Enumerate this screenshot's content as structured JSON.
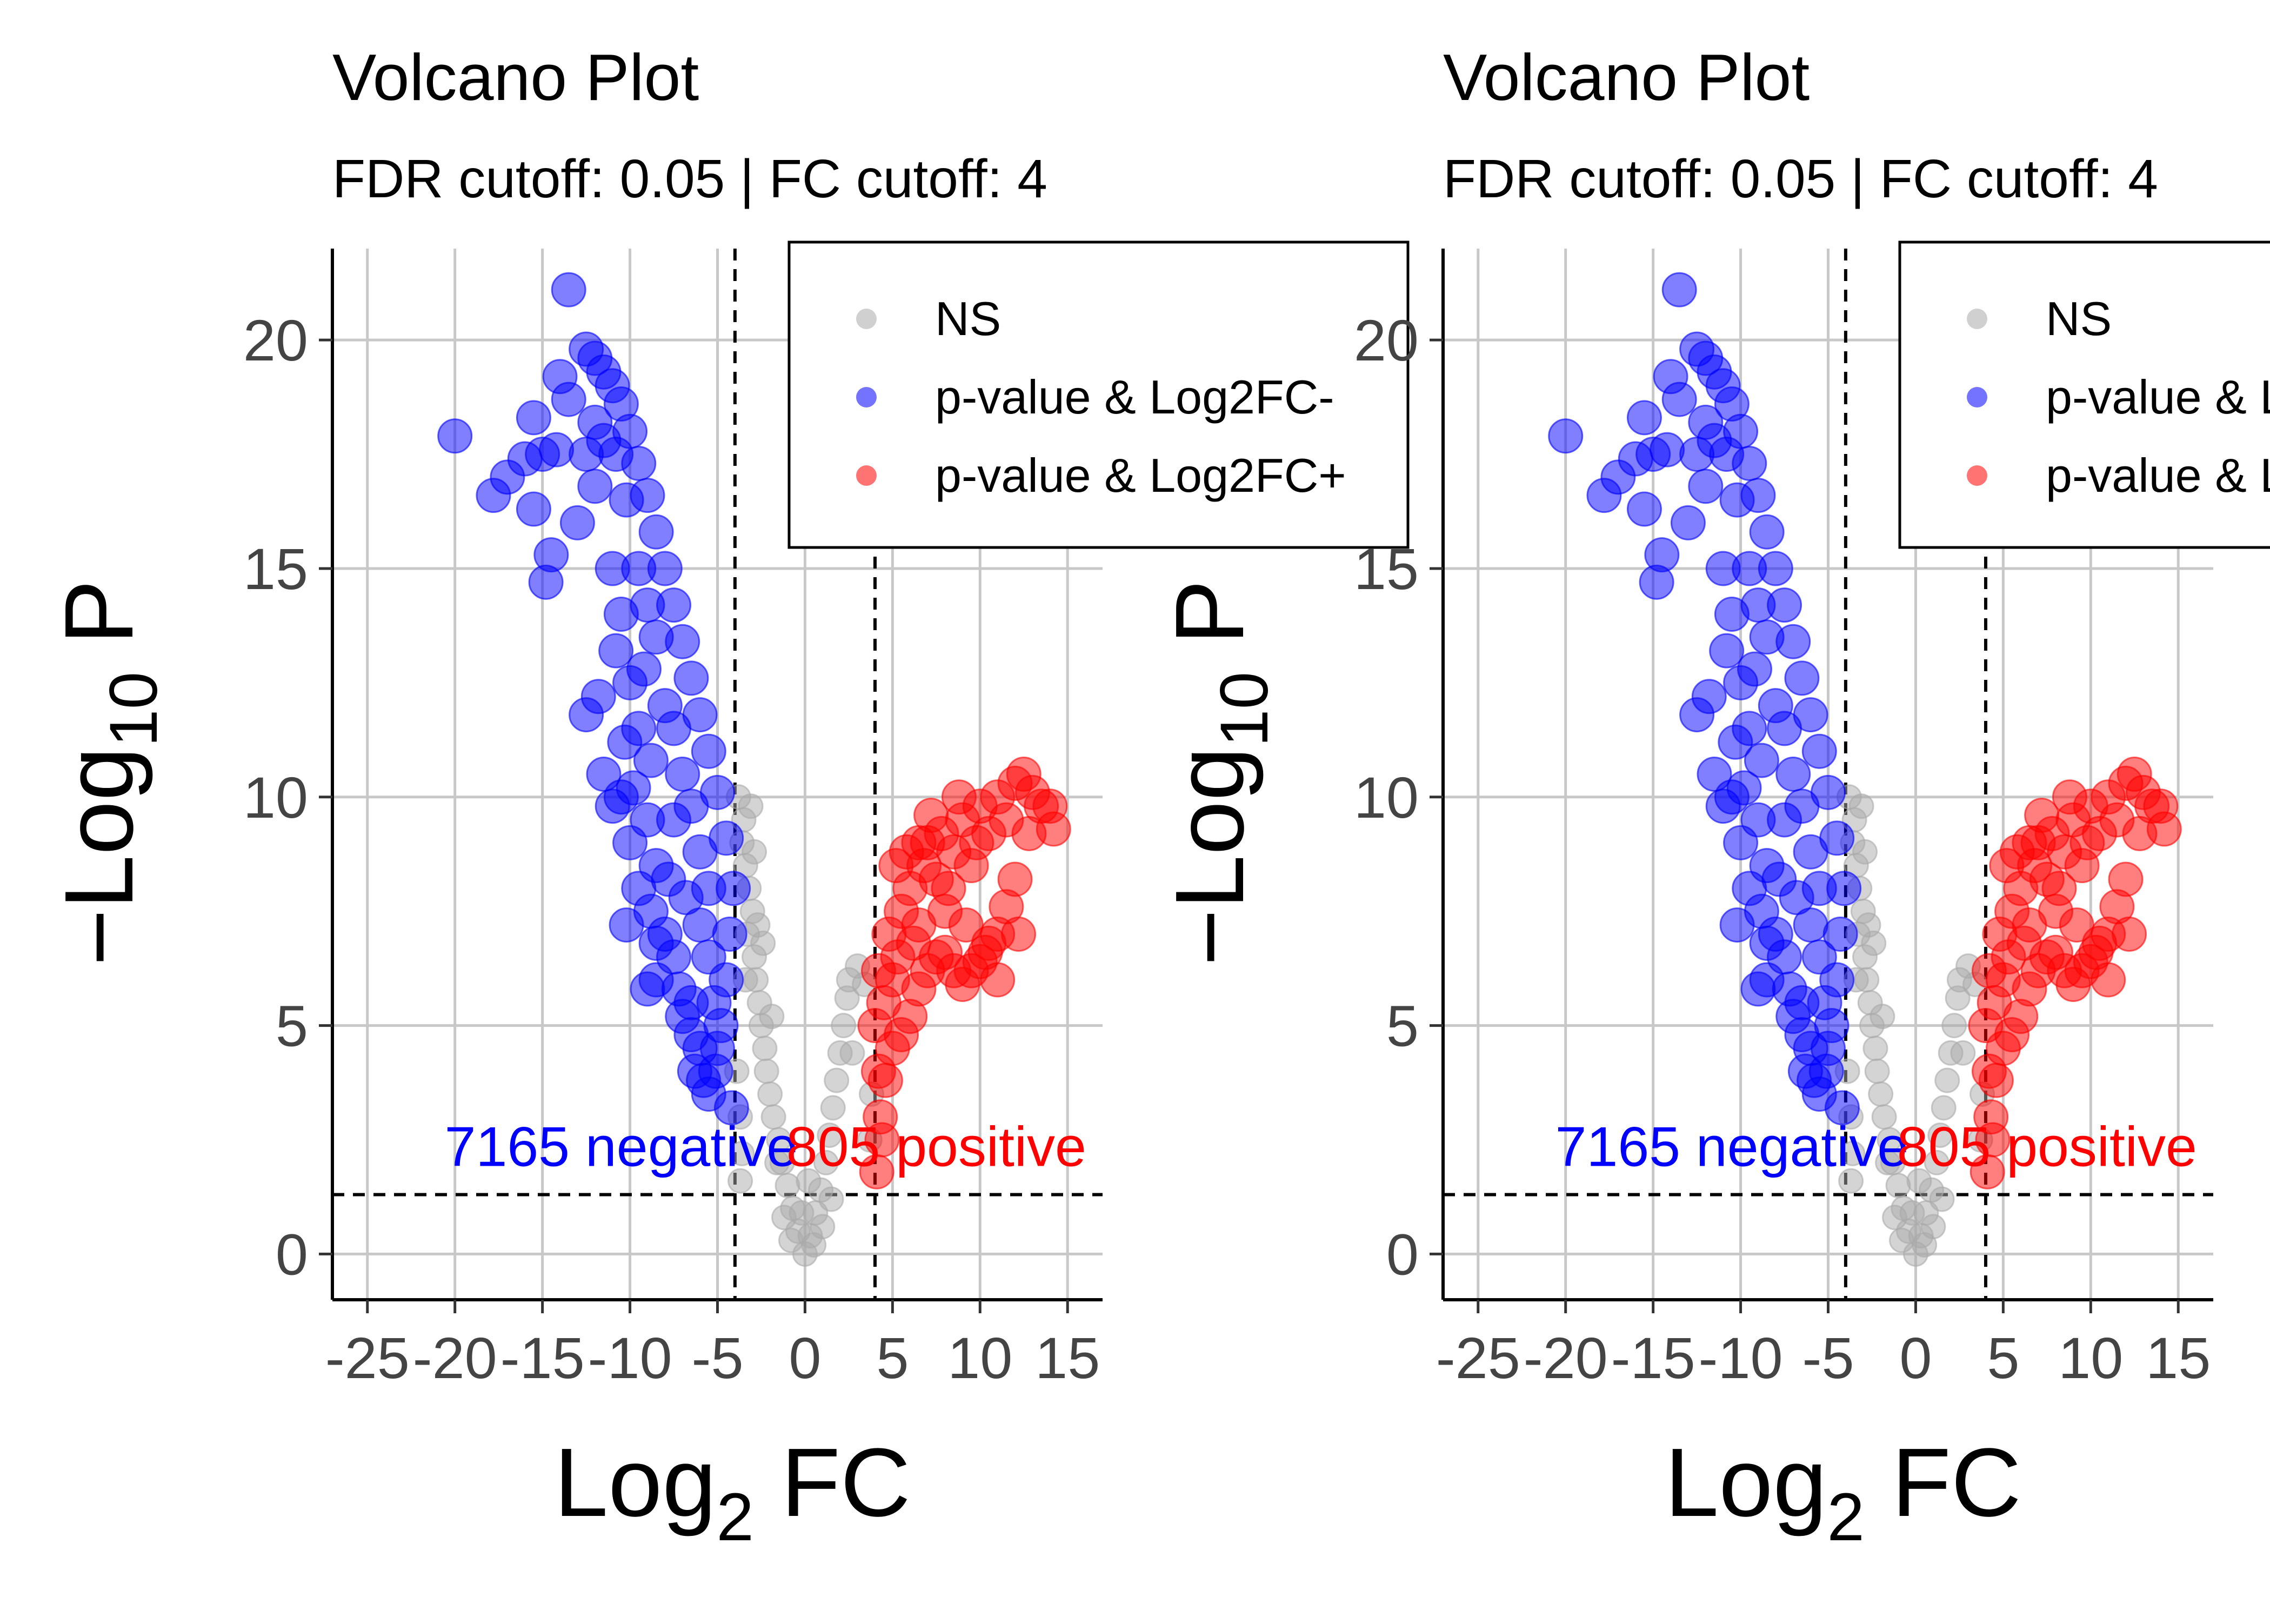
{
  "chart_data": [
    {
      "type": "scatter",
      "title": "Volcano Plot",
      "subtitle": "FDR cutoff: 0.05 | FC cutoff: 4",
      "xlabel_main": "Log",
      "xlabel_sub": "2",
      "xlabel_tail": " FC",
      "ylabel_main": "−Log",
      "ylabel_sub": "10",
      "ylabel_tail": " P",
      "xlim": [
        -27,
        17
      ],
      "ylim": [
        -1,
        22
      ],
      "xticks": [
        -25,
        -20,
        -15,
        -10,
        -5,
        0,
        5,
        10,
        15
      ],
      "yticks": [
        0,
        5,
        10,
        15,
        20
      ],
      "grid": true,
      "vlines": [
        -4,
        4
      ],
      "hline": 1.3,
      "legend": {
        "placement": "top-right",
        "entries": [
          {
            "label": "NS",
            "color": "#aaaaaa"
          },
          {
            "label": "p-value & Log2FC-",
            "color": "#0000ff"
          },
          {
            "label": "p-value & Log2FC+",
            "color": "#ff0000"
          }
        ]
      },
      "annotations": [
        {
          "text": "7165 negative",
          "x": -10.5,
          "y": 2.4,
          "color": "#0000ff"
        },
        {
          "text": "805 positive",
          "x": 7.5,
          "y": 2.4,
          "color": "#ff0000"
        }
      ],
      "series_groups": [
        {
          "name": "NS",
          "color": "#aaaaaa",
          "points": [
            [
              -3.8,
              10.0
            ],
            [
              -3.5,
              9.5
            ],
            [
              -3.6,
              9.0
            ],
            [
              -3.4,
              8.5
            ],
            [
              -3.2,
              8.0
            ],
            [
              -3.0,
              7.5
            ],
            [
              -3.3,
              7.0
            ],
            [
              -2.9,
              6.5
            ],
            [
              -2.8,
              6.0
            ],
            [
              -2.6,
              5.5
            ],
            [
              -2.5,
              5.0
            ],
            [
              -2.3,
              4.5
            ],
            [
              -2.2,
              4.0
            ],
            [
              -2.0,
              3.5
            ],
            [
              -1.8,
              3.0
            ],
            [
              -1.5,
              2.5
            ],
            [
              -1.3,
              2.0
            ],
            [
              -1.0,
              1.5
            ],
            [
              -0.7,
              1.0
            ],
            [
              -0.4,
              0.5
            ],
            [
              0.0,
              0.0
            ],
            [
              0.3,
              0.4
            ],
            [
              0.6,
              0.9
            ],
            [
              0.9,
              1.4
            ],
            [
              1.2,
              2.0
            ],
            [
              1.4,
              2.6
            ],
            [
              1.6,
              3.2
            ],
            [
              1.8,
              3.8
            ],
            [
              2.0,
              4.4
            ],
            [
              2.2,
              5.0
            ],
            [
              2.4,
              5.6
            ],
            [
              2.5,
              6.0
            ],
            [
              3.0,
              6.3
            ],
            [
              3.4,
              5.9
            ],
            [
              3.8,
              3.5
            ],
            [
              3.7,
              2.5
            ],
            [
              -3.9,
              4.0
            ],
            [
              -3.7,
              3.0
            ],
            [
              -3.6,
              2.2
            ],
            [
              -3.4,
              6.0
            ],
            [
              -3.1,
              9.8
            ],
            [
              -2.7,
              7.2
            ],
            [
              -1.9,
              5.2
            ],
            [
              -2.4,
              6.8
            ],
            [
              -1.2,
              0.8
            ],
            [
              -0.8,
              0.3
            ],
            [
              0.5,
              0.2
            ],
            [
              1.0,
              0.6
            ],
            [
              1.5,
              1.2
            ],
            [
              2.7,
              4.4
            ],
            [
              -1.6,
              2.0
            ],
            [
              -0.2,
              0.9
            ],
            [
              0.2,
              1.6
            ],
            [
              -2.9,
              8.8
            ],
            [
              -3.7,
              1.6
            ]
          ]
        },
        {
          "name": "p-value & Log2FC-",
          "color": "#0000ff",
          "points": [
            [
              -13.5,
              21.1
            ],
            [
              -20.0,
              17.9
            ],
            [
              -17.8,
              16.6
            ],
            [
              -17.0,
              17.0
            ],
            [
              -16.0,
              17.4
            ],
            [
              -15.5,
              18.3
            ],
            [
              -15.0,
              17.5
            ],
            [
              -15.5,
              16.3
            ],
            [
              -14.5,
              15.3
            ],
            [
              -14.8,
              14.7
            ],
            [
              -14.2,
              17.6
            ],
            [
              -14.0,
              19.2
            ],
            [
              -13.5,
              18.7
            ],
            [
              -12.5,
              19.8
            ],
            [
              -12.0,
              19.6
            ],
            [
              -11.5,
              19.3
            ],
            [
              -11.0,
              19.0
            ],
            [
              -10.5,
              18.6
            ],
            [
              -10.0,
              18.0
            ],
            [
              -9.5,
              17.3
            ],
            [
              -9.0,
              16.6
            ],
            [
              -8.5,
              15.8
            ],
            [
              -8.0,
              15.0
            ],
            [
              -7.5,
              14.2
            ],
            [
              -7.0,
              13.4
            ],
            [
              -6.5,
              12.6
            ],
            [
              -6.0,
              11.8
            ],
            [
              -5.5,
              11.0
            ],
            [
              -5.0,
              10.1
            ],
            [
              -4.5,
              9.1
            ],
            [
              -4.1,
              8.0
            ],
            [
              -4.3,
              7.0
            ],
            [
              -4.5,
              6.0
            ],
            [
              -4.8,
              5.0
            ],
            [
              -5.1,
              4.0
            ],
            [
              -5.5,
              3.5
            ],
            [
              -4.2,
              3.2
            ],
            [
              -5.0,
              4.5
            ],
            [
              -10.2,
              16.5
            ],
            [
              -10.8,
              17.5
            ],
            [
              -12.0,
              18.2
            ],
            [
              -11.0,
              15.0
            ],
            [
              -10.5,
              14.0
            ],
            [
              -10.0,
              12.5
            ],
            [
              -9.5,
              11.5
            ],
            [
              -9.8,
              10.2
            ],
            [
              -10.5,
              10.0
            ],
            [
              -11.5,
              10.5
            ],
            [
              -12.5,
              11.8
            ],
            [
              -11.8,
              12.2
            ],
            [
              -10.8,
              13.2
            ],
            [
              -11.0,
              9.8
            ],
            [
              -10.0,
              9.0
            ],
            [
              -9.0,
              9.5
            ],
            [
              -8.5,
              8.5
            ],
            [
              -9.5,
              8.0
            ],
            [
              -10.2,
              7.2
            ],
            [
              -8.8,
              7.5
            ],
            [
              -8.0,
              7.0
            ],
            [
              -7.5,
              6.5
            ],
            [
              -8.5,
              6.0
            ],
            [
              -9.0,
              5.8
            ],
            [
              -8.5,
              6.8
            ],
            [
              -7.2,
              5.8
            ],
            [
              -7.0,
              5.2
            ],
            [
              -6.5,
              4.8
            ],
            [
              -6.0,
              4.5
            ],
            [
              -6.5,
              5.5
            ],
            [
              -7.5,
              9.5
            ],
            [
              -7.0,
              10.5
            ],
            [
              -6.5,
              9.8
            ],
            [
              -6.0,
              8.8
            ],
            [
              -5.5,
              8.0
            ],
            [
              -6.0,
              7.2
            ],
            [
              -5.5,
              6.5
            ],
            [
              -5.2,
              5.5
            ],
            [
              -5.8,
              3.8
            ],
            [
              -6.3,
              4.0
            ],
            [
              -8.0,
              12.0
            ],
            [
              -7.5,
              11.5
            ],
            [
              -8.5,
              13.5
            ],
            [
              -9.0,
              14.2
            ],
            [
              -9.5,
              15.0
            ],
            [
              -12.0,
              16.8
            ],
            [
              -12.5,
              17.5
            ],
            [
              -13.0,
              16.0
            ],
            [
              -11.5,
              17.8
            ],
            [
              -8.8,
              10.8
            ],
            [
              -7.8,
              8.2
            ],
            [
              -6.8,
              7.8
            ],
            [
              -9.2,
              12.8
            ],
            [
              -10.3,
              11.2
            ]
          ]
        },
        {
          "name": "p-value & Log2FC+",
          "color": "#ff0000",
          "points": [
            [
              4.1,
              1.8
            ],
            [
              4.3,
              3.0
            ],
            [
              4.2,
              4.0
            ],
            [
              4.0,
              5.0
            ],
            [
              4.5,
              5.5
            ],
            [
              4.2,
              6.2
            ],
            [
              4.8,
              7.0
            ],
            [
              5.0,
              6.0
            ],
            [
              5.5,
              7.5
            ],
            [
              5.2,
              8.5
            ],
            [
              5.8,
              8.8
            ],
            [
              6.0,
              8.0
            ],
            [
              6.5,
              7.2
            ],
            [
              6.8,
              8.5
            ],
            [
              7.0,
              9.0
            ],
            [
              7.5,
              8.2
            ],
            [
              7.8,
              9.2
            ],
            [
              8.0,
              7.5
            ],
            [
              8.5,
              8.8
            ],
            [
              9.0,
              9.5
            ],
            [
              9.5,
              8.5
            ],
            [
              10.0,
              9.8
            ],
            [
              10.5,
              9.2
            ],
            [
              11.0,
              10.0
            ],
            [
              11.5,
              9.5
            ],
            [
              12.0,
              10.3
            ],
            [
              12.5,
              10.5
            ],
            [
              13.0,
              10.1
            ],
            [
              13.5,
              9.8
            ],
            [
              14.2,
              9.3
            ],
            [
              14.0,
              9.8
            ],
            [
              12.8,
              9.2
            ],
            [
              12.0,
              8.2
            ],
            [
              11.5,
              7.6
            ],
            [
              11.0,
              7.0
            ],
            [
              10.5,
              6.8
            ],
            [
              10.0,
              6.4
            ],
            [
              9.5,
              6.2
            ],
            [
              9.0,
              5.9
            ],
            [
              8.5,
              6.2
            ],
            [
              8.0,
              6.6
            ],
            [
              7.5,
              6.5
            ],
            [
              7.0,
              6.2
            ],
            [
              6.5,
              5.8
            ],
            [
              6.0,
              5.2
            ],
            [
              5.5,
              4.8
            ],
            [
              5.0,
              4.5
            ],
            [
              4.6,
              3.8
            ],
            [
              4.4,
              2.5
            ],
            [
              6.5,
              9.0
            ],
            [
              7.2,
              9.6
            ],
            [
              8.8,
              10.0
            ],
            [
              9.8,
              9.0
            ],
            [
              12.2,
              7.0
            ],
            [
              11.0,
              6.0
            ],
            [
              10.3,
              6.6
            ],
            [
              9.2,
              7.2
            ],
            [
              8.2,
              8.0
            ],
            [
              6.2,
              6.8
            ],
            [
              5.3,
              6.5
            ]
          ]
        }
      ]
    }
  ]
}
